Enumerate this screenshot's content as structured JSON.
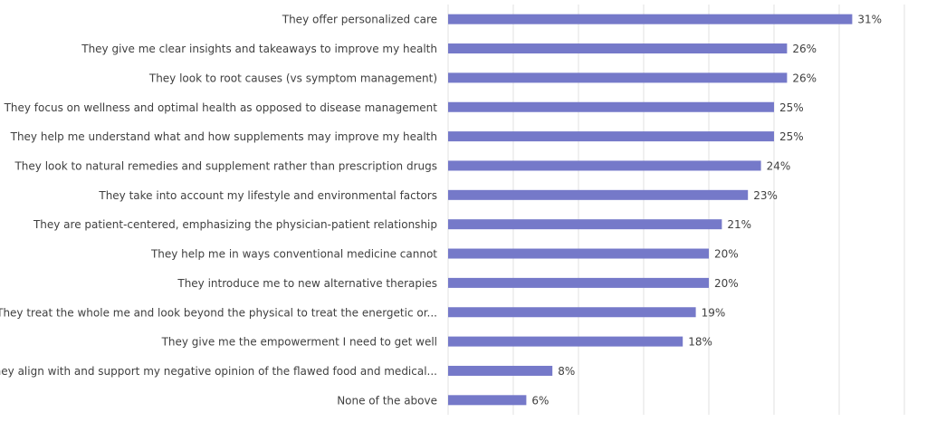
{
  "chart_data": {
    "type": "bar",
    "orientation": "horizontal",
    "categories": [
      "They offer personalized care",
      "They give me clear insights and takeaways to improve my health",
      "They look to root causes (vs  symptom management)",
      "They focus on wellness and optimal health as opposed to disease management",
      "They help me understand what and how supplements may improve my health",
      "They look to natural remedies and supplement rather than prescription drugs",
      "They take into account my lifestyle and environmental factors",
      "They are patient-centered, emphasizing the physician-patient relationship",
      "They help me in ways conventional medicine cannot",
      "They introduce me to new alternative therapies",
      "They treat the whole me and look beyond the physical to treat the energetic or...",
      "They give me the empowerment I need to get well",
      "They align with and support my negative opinion of the flawed food and medical...",
      "None of the above"
    ],
    "values": [
      31,
      26,
      26,
      25,
      25,
      24,
      23,
      21,
      20,
      20,
      19,
      18,
      8,
      6
    ],
    "value_labels": [
      "31%",
      "26%",
      "26%",
      "25%",
      "25%",
      "24%",
      "23%",
      "21%",
      "20%",
      "20%",
      "19%",
      "18%",
      "8%",
      "6%"
    ],
    "color": "#7579c9",
    "xlim": [
      0,
      35
    ],
    "xticks": [
      0,
      5,
      10,
      15,
      20,
      25,
      30,
      35
    ],
    "grid": true
  }
}
